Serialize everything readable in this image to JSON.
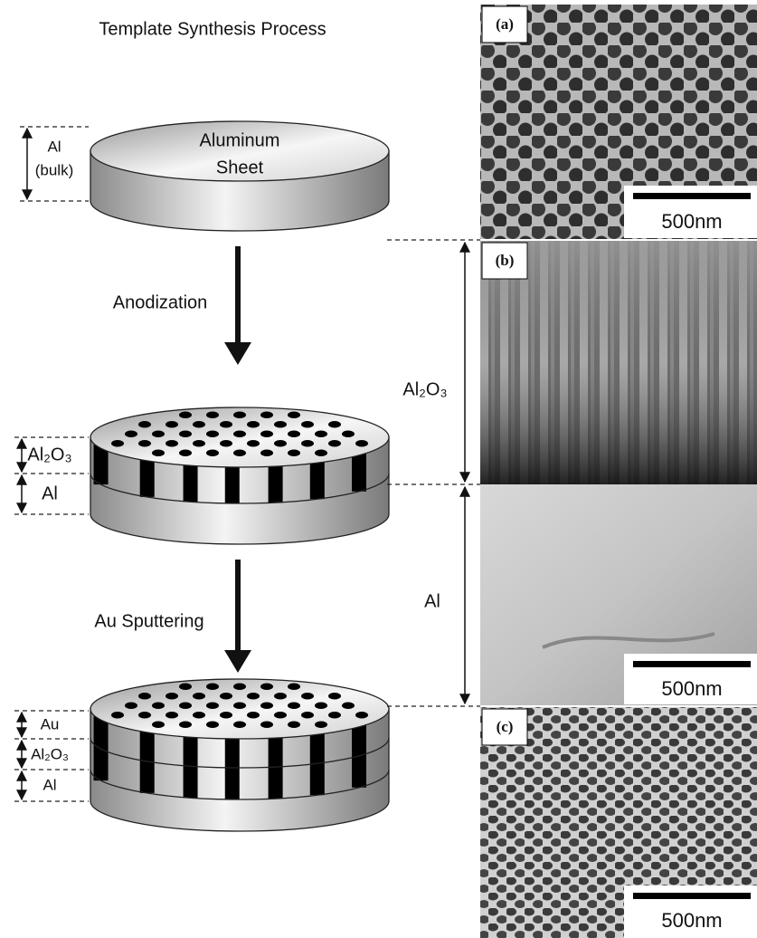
{
  "title": "Template Synthesis Process",
  "stage1": {
    "disk_label": [
      "Aluminum",
      "Sheet"
    ],
    "layer": [
      "Al",
      "(bulk)"
    ]
  },
  "steps": [
    "Anodization",
    "Au Sputtering"
  ],
  "stage2": {
    "layers": [
      "Al₂O₃",
      "Al"
    ]
  },
  "stage3": {
    "layers": [
      "Au",
      "Al₂O₃",
      "Al"
    ]
  },
  "micrographs": [
    {
      "label": "(a)",
      "scale_bar": "500nm"
    },
    {
      "label": "(b)",
      "scale_bar": "500nm"
    },
    {
      "label": "(c)",
      "scale_bar": "500nm"
    }
  ],
  "thickness_labels": [
    "Al₂O₃",
    "Al"
  ]
}
